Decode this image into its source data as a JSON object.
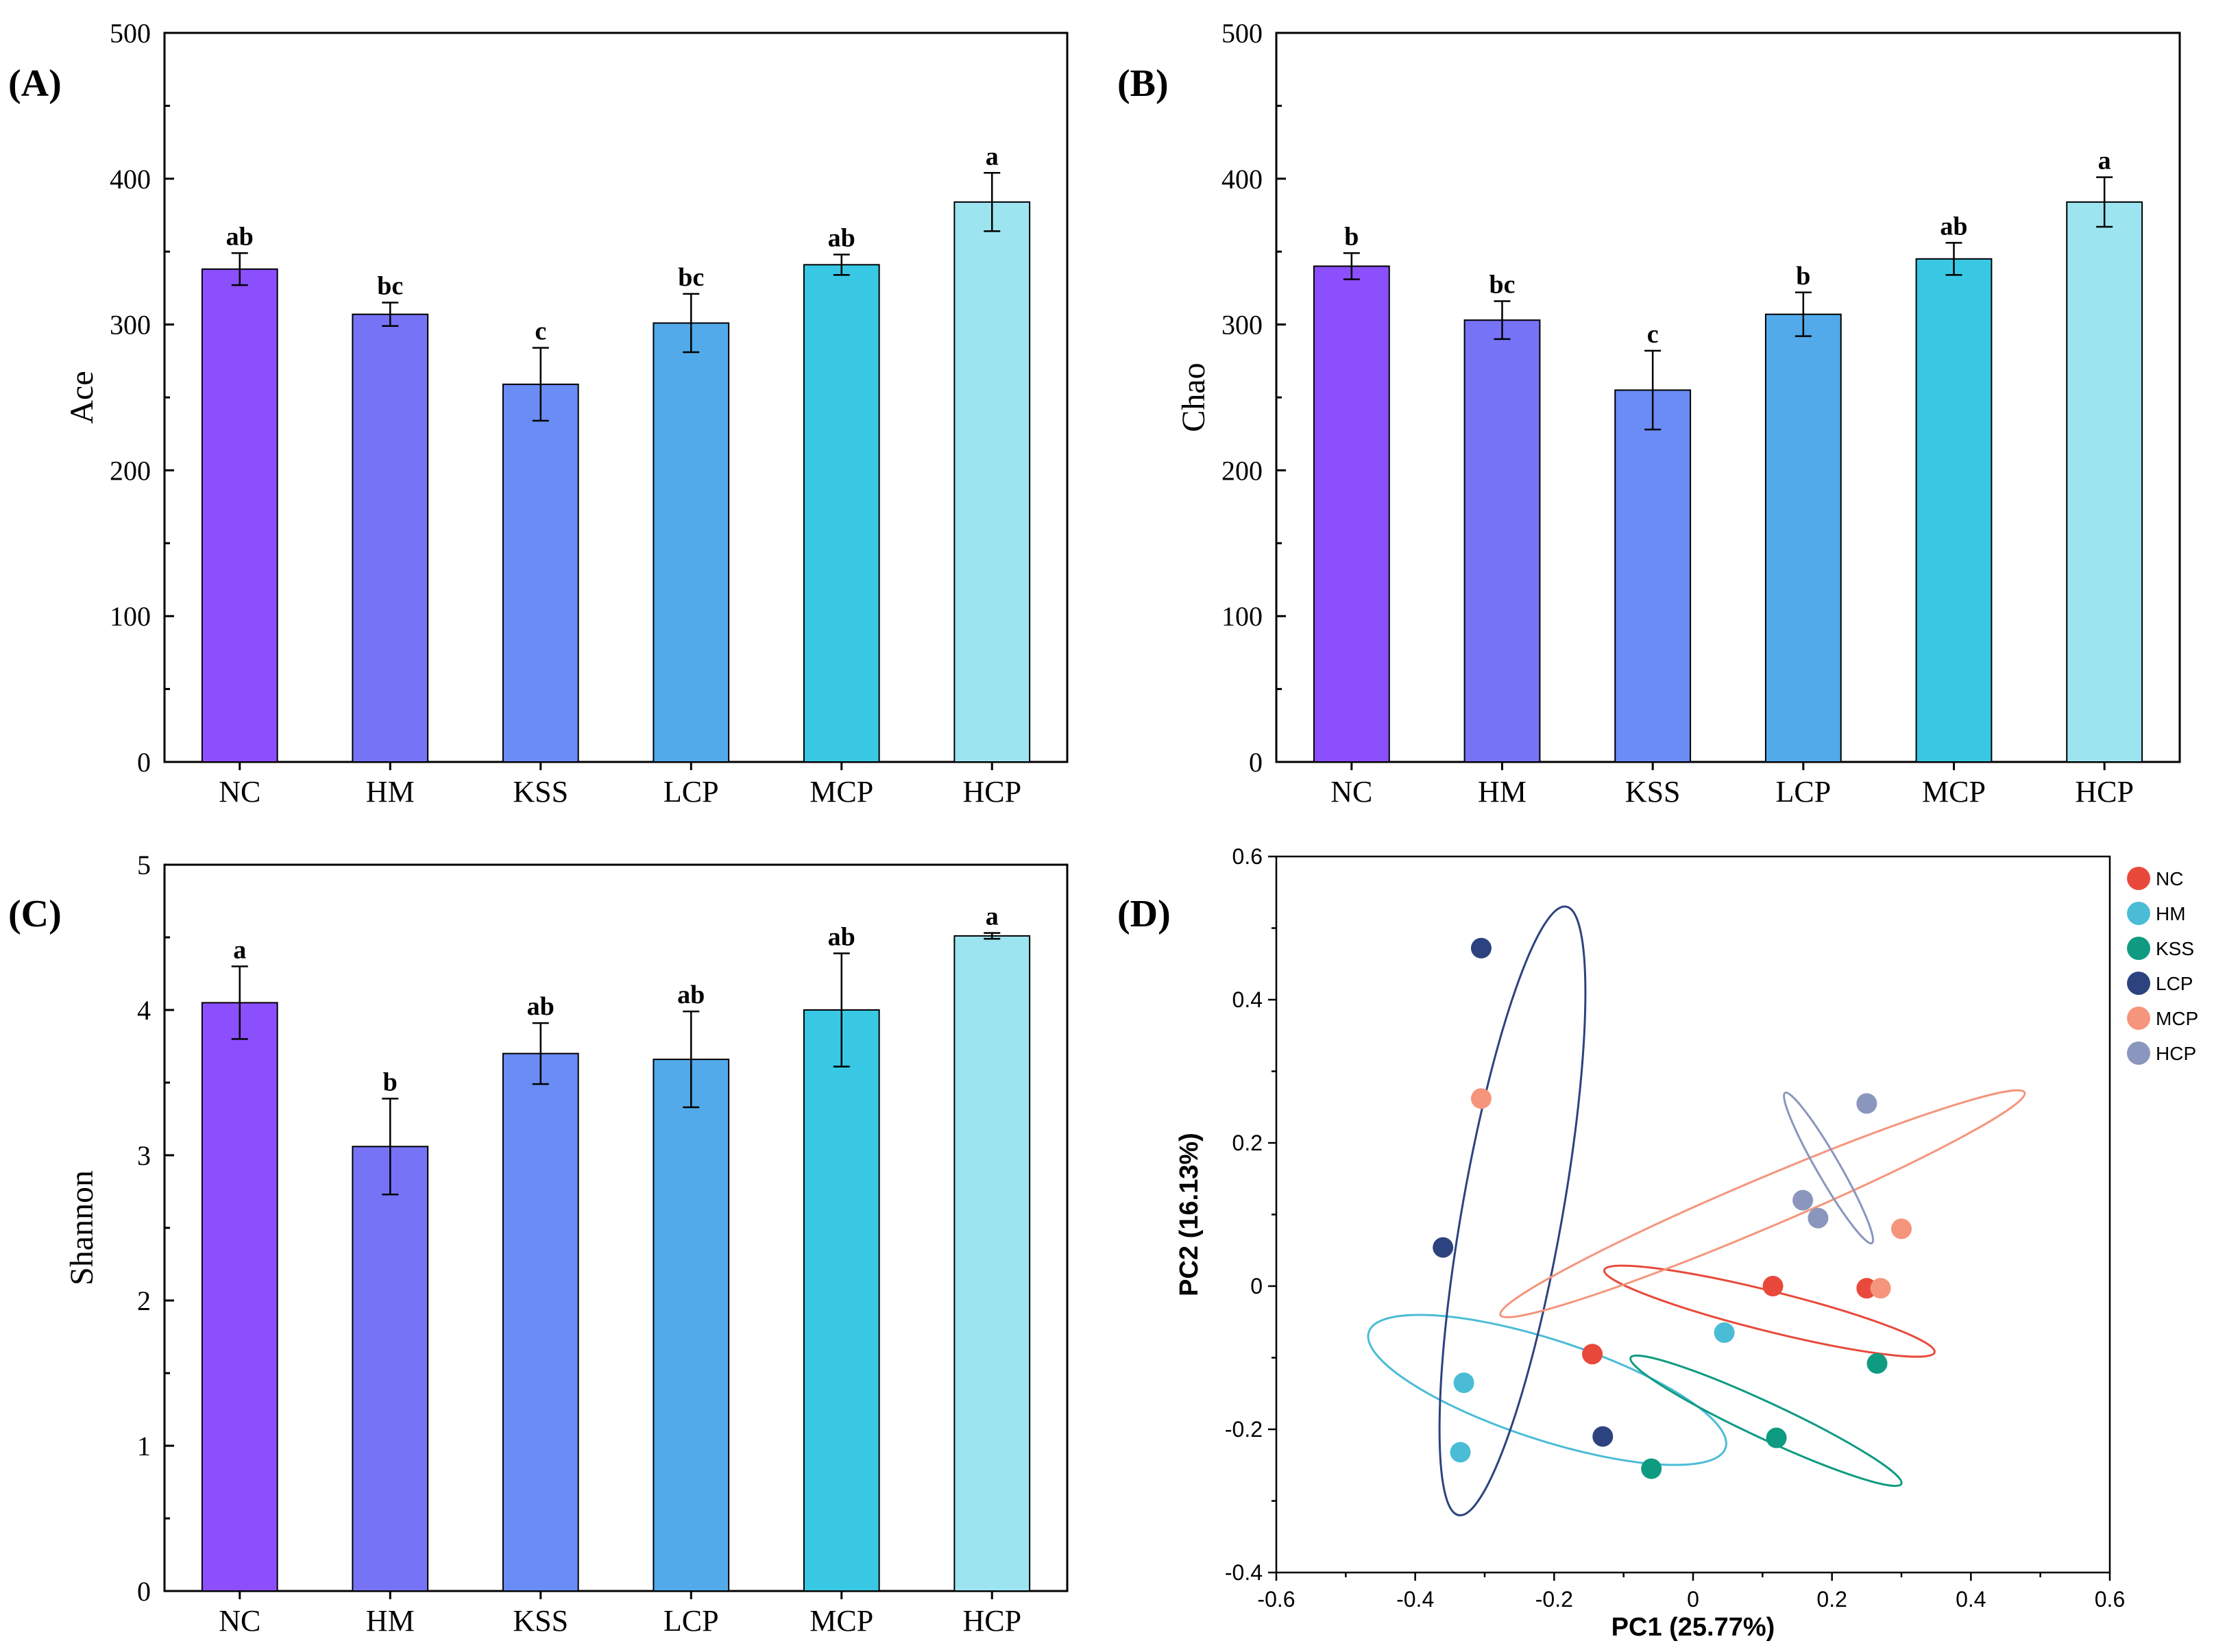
{
  "figure": {
    "panel_labels": [
      "(A)",
      "(B)",
      "(C)",
      "(D)"
    ]
  },
  "colors": {
    "NC": "#8c4ffe",
    "HM": "#7673f7",
    "KSS": "#6a8cf5",
    "LCP": "#52aaea",
    "MCP": "#39c8e4",
    "HCP": "#9de4f1"
  },
  "chart_data": [
    {
      "id": "A",
      "type": "bar",
      "panel_label": "(A)",
      "categories": [
        "NC",
        "HM",
        "KSS",
        "LCP",
        "MCP",
        "HCP"
      ],
      "values": [
        338,
        307,
        259,
        301,
        341,
        384
      ],
      "errors": [
        11,
        8,
        25,
        20,
        7,
        20
      ],
      "significance": [
        "ab",
        "bc",
        "c",
        "bc",
        "ab",
        "a"
      ],
      "ylabel": "Ace",
      "ylim": [
        0,
        500
      ],
      "yticks": [
        0,
        100,
        200,
        300,
        400,
        500
      ]
    },
    {
      "id": "B",
      "type": "bar",
      "panel_label": "(B)",
      "categories": [
        "NC",
        "HM",
        "KSS",
        "LCP",
        "MCP",
        "HCP"
      ],
      "values": [
        340,
        303,
        255,
        307,
        345,
        384
      ],
      "errors": [
        9,
        13,
        27,
        15,
        11,
        17
      ],
      "significance": [
        "b",
        "bc",
        "c",
        "b",
        "ab",
        "a"
      ],
      "ylabel": "Chao",
      "ylim": [
        0,
        500
      ],
      "yticks": [
        0,
        100,
        200,
        300,
        400,
        500
      ]
    },
    {
      "id": "C",
      "type": "bar",
      "panel_label": "(C)",
      "categories": [
        "NC",
        "HM",
        "KSS",
        "LCP",
        "MCP",
        "HCP"
      ],
      "values": [
        4.05,
        3.06,
        3.7,
        3.66,
        4.0,
        4.51
      ],
      "errors": [
        0.25,
        0.33,
        0.21,
        0.33,
        0.39,
        0.02
      ],
      "significance": [
        "a",
        "b",
        "ab",
        "ab",
        "ab",
        "a"
      ],
      "ylabel": "Shannon",
      "ylim": [
        0,
        5
      ],
      "yticks": [
        0,
        1,
        2,
        3,
        4,
        5
      ]
    },
    {
      "id": "D",
      "type": "scatter",
      "panel_label": "(D)",
      "xlabel": "PC1 (25.77%)",
      "ylabel": "PC2 (16.13%)",
      "xlim": [
        -0.6,
        0.6
      ],
      "ylim": [
        -0.4,
        0.6
      ],
      "xticks": [
        -0.6,
        -0.4,
        -0.2,
        0,
        0.2,
        0.4,
        0.6
      ],
      "yticks": [
        -0.4,
        -0.2,
        0,
        0.2,
        0.4,
        0.6
      ],
      "legend_position": "right",
      "series": [
        {
          "name": "NC",
          "color": "#e8493a",
          "points": [
            [
              -0.145,
              -0.095
            ],
            [
              0.115,
              0.0
            ],
            [
              0.25,
              -0.003
            ]
          ],
          "ellipse": {
            "cx": 0.11,
            "cy": -0.035,
            "rx": 0.245,
            "ry": 0.028,
            "angle": 14
          }
        },
        {
          "name": "HM",
          "color": "#4bbcd6",
          "points": [
            [
              0.045,
              -0.065
            ],
            [
              -0.33,
              -0.135
            ],
            [
              -0.335,
              -0.232
            ]
          ],
          "ellipse": {
            "cx": -0.21,
            "cy": -0.145,
            "rx": 0.27,
            "ry": 0.07,
            "angle": 18
          }
        },
        {
          "name": "KSS",
          "color": "#0f9b81",
          "points": [
            [
              0.265,
              -0.108
            ],
            [
              0.12,
              -0.212
            ],
            [
              -0.06,
              -0.255
            ]
          ],
          "ellipse": {
            "cx": 0.105,
            "cy": -0.188,
            "rx": 0.215,
            "ry": 0.025,
            "angle": 25
          }
        },
        {
          "name": "LCP",
          "color": "#2d437f",
          "points": [
            [
              -0.305,
              0.472
            ],
            [
              -0.36,
              0.054
            ],
            [
              -0.13,
              -0.21
            ]
          ],
          "ellipse": {
            "cx": -0.26,
            "cy": 0.105,
            "rx": 0.445,
            "ry": 0.07,
            "angle": -80
          }
        },
        {
          "name": "MCP",
          "color": "#f5957c",
          "points": [
            [
              -0.305,
              0.262
            ],
            [
              0.3,
              0.08
            ],
            [
              0.27,
              -0.003
            ]
          ],
          "ellipse": {
            "cx": 0.1,
            "cy": 0.115,
            "rx": 0.41,
            "ry": 0.034,
            "angle": -23
          }
        },
        {
          "name": "HCP",
          "color": "#8a96bd",
          "points": [
            [
              0.25,
              0.255
            ],
            [
              0.158,
              0.12
            ],
            [
              0.18,
              0.095
            ]
          ],
          "ellipse": {
            "cx": 0.195,
            "cy": 0.165,
            "rx": 0.125,
            "ry": 0.016,
            "angle": 60
          }
        }
      ]
    }
  ]
}
